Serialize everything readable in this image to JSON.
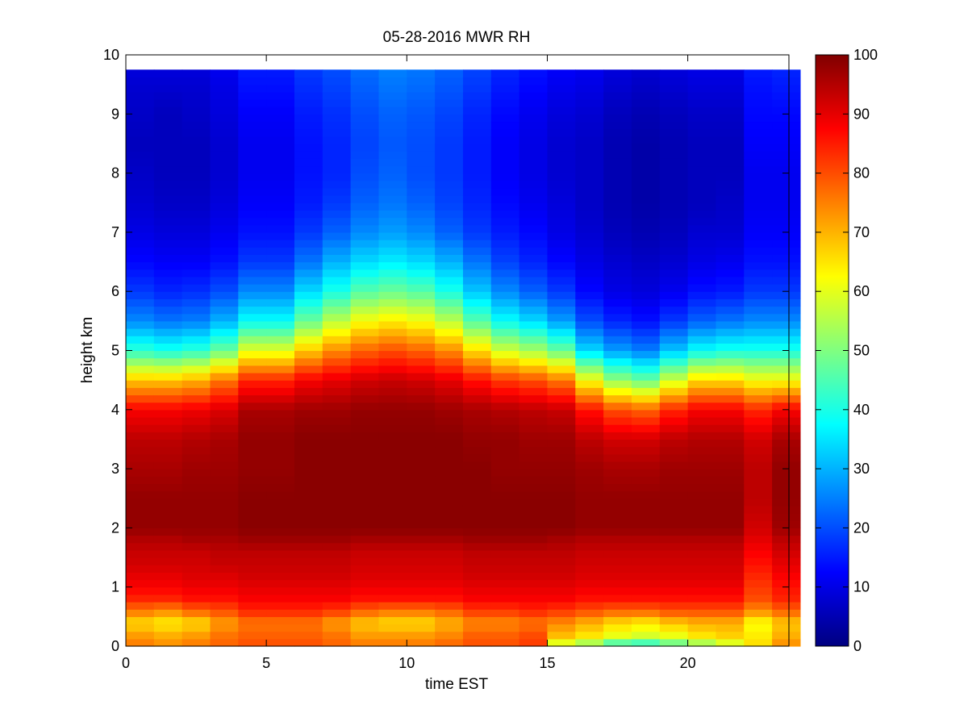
{
  "chart_data": {
    "type": "heatmap",
    "title": "05-28-2016 MWR RH",
    "xlabel": "time EST",
    "ylabel": "height km",
    "xlim": [
      0,
      23.6
    ],
    "ylim": [
      0,
      10
    ],
    "x_ticks": [
      0,
      5,
      10,
      15,
      20
    ],
    "y_ticks": [
      0,
      1,
      2,
      3,
      4,
      5,
      6,
      7,
      8,
      9,
      10
    ],
    "colorbar": {
      "label": "",
      "range": [
        0,
        100
      ],
      "ticks": [
        0,
        10,
        20,
        30,
        40,
        50,
        60,
        70,
        80,
        90,
        100
      ],
      "colormap": "jet"
    },
    "grid": false,
    "time_hours": [
      0,
      1,
      2,
      3,
      4,
      5,
      6,
      7,
      8,
      9,
      10,
      11,
      12,
      13,
      14,
      15,
      16,
      17,
      18,
      19,
      20,
      21,
      22,
      23
    ],
    "time_step_hours": 1,
    "height_profile_km": [
      0.0,
      0.2,
      0.4,
      0.6,
      0.8,
      1.0,
      1.2,
      1.4,
      1.6,
      1.8,
      2.0,
      2.5,
      3.0,
      3.5,
      4.0,
      4.5,
      5.0,
      5.5,
      6.0,
      6.5,
      7.0,
      7.5,
      8.0,
      8.5,
      9.0,
      9.5,
      9.75
    ],
    "rh_percent_profiles": [
      [
        76,
        72,
        66,
        76,
        84,
        88,
        90,
        92,
        93,
        95,
        98,
        98,
        96,
        94,
        88,
        68,
        42,
        26,
        18,
        13,
        10,
        8,
        7,
        6,
        7,
        8,
        9
      ],
      [
        74,
        70,
        64,
        74,
        84,
        88,
        90,
        92,
        93,
        95,
        98,
        98,
        96,
        94,
        88,
        68,
        40,
        24,
        16,
        12,
        9,
        7,
        6,
        6,
        6,
        8,
        9
      ],
      [
        76,
        72,
        66,
        78,
        86,
        89,
        91,
        92,
        93,
        96,
        98,
        98,
        97,
        95,
        89,
        70,
        42,
        25,
        17,
        12,
        9,
        7,
        6,
        6,
        7,
        8,
        9
      ],
      [
        78,
        76,
        72,
        80,
        86,
        89,
        91,
        93,
        94,
        96,
        98,
        98,
        97,
        96,
        91,
        76,
        48,
        30,
        20,
        14,
        11,
        9,
        8,
        8,
        9,
        10,
        11
      ],
      [
        80,
        78,
        76,
        84,
        88,
        90,
        92,
        93,
        94,
        97,
        99,
        99,
        98,
        98,
        96,
        84,
        60,
        38,
        26,
        18,
        14,
        12,
        11,
        11,
        12,
        14,
        15
      ],
      [
        80,
        78,
        76,
        84,
        88,
        90,
        92,
        93,
        94,
        97,
        99,
        99,
        98,
        98,
        96,
        84,
        60,
        38,
        26,
        18,
        14,
        12,
        11,
        11,
        12,
        14,
        15
      ],
      [
        80,
        78,
        76,
        84,
        88,
        90,
        92,
        93,
        94,
        97,
        99,
        99,
        99,
        99,
        97,
        88,
        68,
        48,
        34,
        24,
        18,
        15,
        14,
        14,
        15,
        17,
        18
      ],
      [
        78,
        76,
        72,
        82,
        88,
        90,
        92,
        93,
        94,
        97,
        99,
        99,
        99,
        99,
        97,
        90,
        74,
        56,
        40,
        30,
        22,
        18,
        16,
        16,
        17,
        19,
        20
      ],
      [
        76,
        72,
        68,
        78,
        86,
        89,
        91,
        92,
        93,
        96,
        99,
        99,
        99,
        99,
        98,
        92,
        78,
        62,
        46,
        34,
        26,
        22,
        20,
        19,
        20,
        22,
        23
      ],
      [
        76,
        72,
        66,
        76,
        86,
        89,
        91,
        92,
        93,
        96,
        99,
        99,
        99,
        99,
        98,
        93,
        80,
        64,
        48,
        36,
        28,
        24,
        22,
        21,
        22,
        24,
        25
      ],
      [
        76,
        72,
        66,
        76,
        86,
        89,
        91,
        92,
        93,
        96,
        99,
        99,
        99,
        99,
        98,
        92,
        78,
        62,
        46,
        34,
        26,
        22,
        20,
        20,
        21,
        23,
        24
      ],
      [
        78,
        74,
        70,
        78,
        86,
        89,
        91,
        92,
        93,
        96,
        99,
        99,
        99,
        99,
        97,
        90,
        74,
        56,
        40,
        30,
        22,
        19,
        18,
        18,
        19,
        21,
        22
      ],
      [
        80,
        78,
        74,
        82,
        88,
        90,
        92,
        93,
        94,
        97,
        99,
        99,
        99,
        98,
        96,
        86,
        66,
        46,
        32,
        24,
        18,
        16,
        15,
        15,
        16,
        18,
        19
      ],
      [
        80,
        78,
        74,
        82,
        88,
        90,
        92,
        93,
        94,
        97,
        99,
        99,
        98,
        98,
        95,
        82,
        58,
        38,
        26,
        19,
        15,
        13,
        12,
        12,
        13,
        15,
        16
      ],
      [
        82,
        80,
        76,
        84,
        88,
        90,
        92,
        93,
        94,
        97,
        99,
        99,
        98,
        97,
        94,
        80,
        54,
        34,
        22,
        16,
        13,
        11,
        10,
        10,
        11,
        13,
        14
      ],
      [
        56,
        70,
        74,
        82,
        88,
        90,
        92,
        93,
        94,
        96,
        99,
        99,
        98,
        97,
        93,
        76,
        48,
        28,
        18,
        13,
        10,
        9,
        8,
        8,
        9,
        11,
        12
      ],
      [
        50,
        66,
        70,
        80,
        86,
        89,
        91,
        92,
        93,
        95,
        98,
        98,
        97,
        94,
        86,
        62,
        34,
        20,
        13,
        10,
        8,
        7,
        7,
        7,
        8,
        10,
        11
      ],
      [
        40,
        62,
        66,
        78,
        86,
        89,
        91,
        92,
        93,
        95,
        98,
        98,
        96,
        92,
        80,
        52,
        28,
        16,
        10,
        8,
        6,
        5,
        5,
        5,
        6,
        8,
        9
      ],
      [
        38,
        60,
        64,
        78,
        86,
        89,
        91,
        92,
        93,
        95,
        98,
        98,
        96,
        92,
        78,
        48,
        25,
        14,
        9,
        7,
        5,
        4,
        4,
        4,
        5,
        7,
        8
      ],
      [
        44,
        62,
        68,
        80,
        86,
        89,
        91,
        92,
        93,
        95,
        98,
        98,
        97,
        94,
        84,
        58,
        32,
        18,
        11,
        8,
        6,
        5,
        5,
        5,
        6,
        8,
        9
      ],
      [
        50,
        66,
        70,
        80,
        86,
        89,
        91,
        92,
        93,
        95,
        98,
        98,
        97,
        95,
        88,
        66,
        38,
        22,
        14,
        10,
        8,
        6,
        6,
        6,
        7,
        9,
        10
      ],
      [
        56,
        68,
        70,
        80,
        86,
        89,
        91,
        92,
        93,
        95,
        98,
        98,
        97,
        95,
        88,
        66,
        40,
        24,
        15,
        11,
        8,
        7,
        6,
        6,
        7,
        9,
        10
      ],
      [
        66,
        64,
        62,
        74,
        80,
        82,
        84,
        86,
        88,
        90,
        92,
        94,
        94,
        92,
        84,
        62,
        40,
        26,
        18,
        14,
        12,
        11,
        11,
        12,
        13,
        14,
        15
      ],
      [
        74,
        70,
        68,
        78,
        84,
        86,
        88,
        90,
        92,
        94,
        97,
        98,
        98,
        96,
        88,
        62,
        40,
        26,
        18,
        14,
        12,
        11,
        11,
        12,
        13,
        15,
        16
      ]
    ]
  }
}
